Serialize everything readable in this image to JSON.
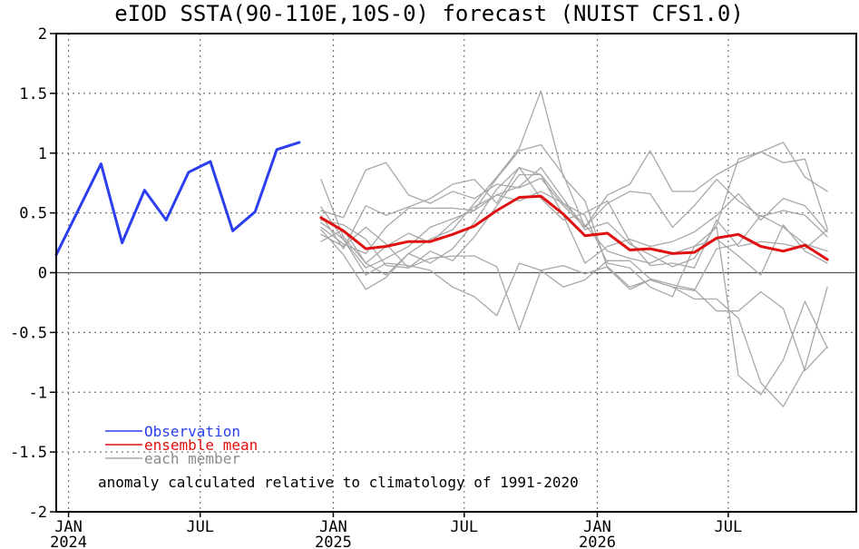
{
  "chart_data": {
    "type": "line",
    "title": "eIOD SSTA(90-110E,10S-0) forecast (NUIST CFS1.0)",
    "xlabel": "",
    "ylabel": "",
    "x_range": [
      "2023-12-15",
      "2026-12-25"
    ],
    "ylim": [
      -2,
      2
    ],
    "y_ticks": [
      {
        "label": "2",
        "value": 2
      },
      {
        "label": "1.5",
        "value": 1.5
      },
      {
        "label": "1",
        "value": 1
      },
      {
        "label": "0.5",
        "value": 0.5
      },
      {
        "label": "0",
        "value": 0
      },
      {
        "label": "-0.5",
        "value": -0.5
      },
      {
        "label": "-1",
        "value": -1
      },
      {
        "label": "-1.5",
        "value": -1.5
      },
      {
        "label": "-2",
        "value": -2
      }
    ],
    "x_ticks": [
      {
        "month": "JAN",
        "year": "2024",
        "date": "2024-01-01"
      },
      {
        "month": "JUL",
        "year": "",
        "date": "2024-07-01"
      },
      {
        "month": "JAN",
        "year": "2025",
        "date": "2025-01-01"
      },
      {
        "month": "JUL",
        "year": "",
        "date": "2025-07-01"
      },
      {
        "month": "JAN",
        "year": "2026",
        "date": "2026-01-01"
      },
      {
        "month": "JUL",
        "year": "",
        "date": "2026-07-01"
      }
    ],
    "grid": true,
    "zero_line": true,
    "legend_position": "bottom-left",
    "annotation": "anomaly calculated relative to climatology of 1991-2020",
    "colors": {
      "observation": "#2b3ff0",
      "ensemble_mean": "#e01010",
      "member": "#a8a8a8",
      "grid": "#777777",
      "axis": "#000000"
    },
    "series": [
      {
        "name": "Observation",
        "role": "observation",
        "x": [
          "2023-12-15",
          "2024-01-15",
          "2024-02-15",
          "2024-03-15",
          "2024-04-15",
          "2024-05-15",
          "2024-06-15",
          "2024-07-15",
          "2024-08-15",
          "2024-09-15",
          "2024-10-15",
          "2024-11-15"
        ],
        "values": [
          0.15,
          0.53,
          0.91,
          0.25,
          0.69,
          0.44,
          0.84,
          0.93,
          0.35,
          0.51,
          1.03,
          1.09
        ]
      },
      {
        "name": "ensemble mean",
        "role": "ensemble_mean",
        "x": [
          "2024-12-15",
          "2025-01-15",
          "2025-02-15",
          "2025-03-15",
          "2025-04-15",
          "2025-05-15",
          "2025-06-15",
          "2025-07-15",
          "2025-08-15",
          "2025-09-15",
          "2025-10-15",
          "2025-11-15",
          "2025-12-15",
          "2026-01-15",
          "2026-02-15",
          "2026-03-15",
          "2026-04-15",
          "2026-05-15",
          "2026-06-15",
          "2026-07-15",
          "2026-08-15",
          "2026-09-15",
          "2026-10-15",
          "2026-11-15"
        ],
        "values": [
          0.46,
          0.35,
          0.2,
          0.22,
          0.26,
          0.26,
          0.32,
          0.39,
          0.52,
          0.63,
          0.64,
          0.49,
          0.31,
          0.33,
          0.19,
          0.2,
          0.16,
          0.17,
          0.29,
          0.32,
          0.22,
          0.18,
          0.23,
          0.11
        ]
      },
      {
        "name": "each member",
        "role": "member",
        "members": [
          {
            "x_start": "2024-12-15",
            "values": [
              0.78,
              0.3,
              0.08,
              0.22,
              0.33,
              0.25,
              0.42,
              0.55,
              0.65,
              0.72,
              0.88,
              0.62,
              0.36,
              0.42,
              0.24,
              0.15,
              0.05,
              0.12,
              0.4,
              0.95,
              1.01,
              0.92,
              0.95,
              0.37
            ]
          },
          {
            "x_start": "2024-12-15",
            "values": [
              0.52,
              0.46,
              0.86,
              0.92,
              0.65,
              0.58,
              0.68,
              0.62,
              0.74,
              0.71,
              0.79,
              0.56,
              0.38,
              0.58,
              0.68,
              0.66,
              0.38,
              0.56,
              0.78,
              0.6,
              0.47,
              0.52,
              0.48,
              0.3
            ]
          },
          {
            "x_start": "2024-12-15",
            "values": [
              0.36,
              0.15,
              -0.14,
              -0.04,
              0.16,
              0.08,
              0.2,
              0.42,
              0.7,
              0.88,
              0.82,
              0.58,
              0.48,
              0.08,
              0.04,
              -0.12,
              -0.2,
              0.22,
              0.38,
              -0.86,
              -1.02,
              -0.73,
              -0.24,
              -0.63
            ]
          },
          {
            "x_start": "2024-12-15",
            "values": [
              0.42,
              0.28,
              0.04,
              0.12,
              0.22,
              0.38,
              0.45,
              0.52,
              0.79,
              1.02,
              1.07,
              0.82,
              0.38,
              0.65,
              0.74,
              1.02,
              0.68,
              0.68,
              0.82,
              0.92,
              1.01,
              1.09,
              0.8,
              0.68
            ]
          },
          {
            "x_start": "2024-12-15",
            "values": [
              0.26,
              0.36,
              0.08,
              -0.02,
              0.16,
              0.28,
              0.36,
              0.58,
              0.8,
              1.04,
              1.52,
              0.8,
              0.6,
              0.04,
              -0.14,
              -0.06,
              -0.12,
              -0.15,
              0.2,
              0.24,
              0.48,
              0.38,
              0.24,
              0.18
            ]
          },
          {
            "x_start": "2024-12-15",
            "values": [
              0.55,
              0.28,
              -0.02,
              0.08,
              0.06,
              0.02,
              -0.12,
              -0.2,
              -0.36,
              0.08,
              0.02,
              0.06,
              -0.01,
              0.05,
              -0.12,
              -0.06,
              -0.12,
              -0.22,
              -0.22,
              -0.38,
              -0.92,
              -1.12,
              -0.8,
              -0.12
            ]
          },
          {
            "x_start": "2024-12-15",
            "values": [
              0.32,
              0.22,
              0.38,
              0.24,
              0.04,
              0.18,
              0.1,
              0.3,
              0.56,
              0.82,
              0.82,
              0.48,
              0.08,
              0.22,
              0.28,
              0.22,
              0.26,
              0.34,
              0.48,
              0.66,
              0.44,
              0.62,
              0.56,
              0.34
            ]
          },
          {
            "x_start": "2024-12-15",
            "values": [
              0.44,
              0.4,
              0.28,
              0.06,
              0.04,
              0.12,
              0.14,
              0.14,
              0.05,
              -0.48,
              0.02,
              -0.12,
              -0.06,
              0.1,
              0.1,
              -0.05,
              -0.1,
              -0.14,
              -0.32,
              -0.32,
              -0.16,
              -0.3,
              -0.82,
              -0.62
            ]
          },
          {
            "x_start": "2024-12-15",
            "values": [
              0.48,
              0.2,
              0.56,
              0.48,
              0.55,
              0.62,
              0.74,
              0.78,
              0.58,
              0.88,
              0.62,
              0.44,
              0.5,
              0.6,
              0.26,
              0.06,
              0.08,
              0.04,
              0.44,
              0.22,
              0.26,
              0.24,
              0.2,
              0.36
            ]
          },
          {
            "x_start": "2024-12-15",
            "values": [
              0.38,
              0.24,
              0.16,
              0.38,
              0.54,
              0.54,
              0.54,
              0.52,
              0.65,
              0.6,
              0.68,
              0.58,
              0.4,
              0.18,
              0.12,
              0.08,
              0.16,
              0.22,
              0.28,
              0.14,
              -0.02,
              0.4,
              0.18,
              0.08
            ]
          }
        ]
      }
    ]
  }
}
